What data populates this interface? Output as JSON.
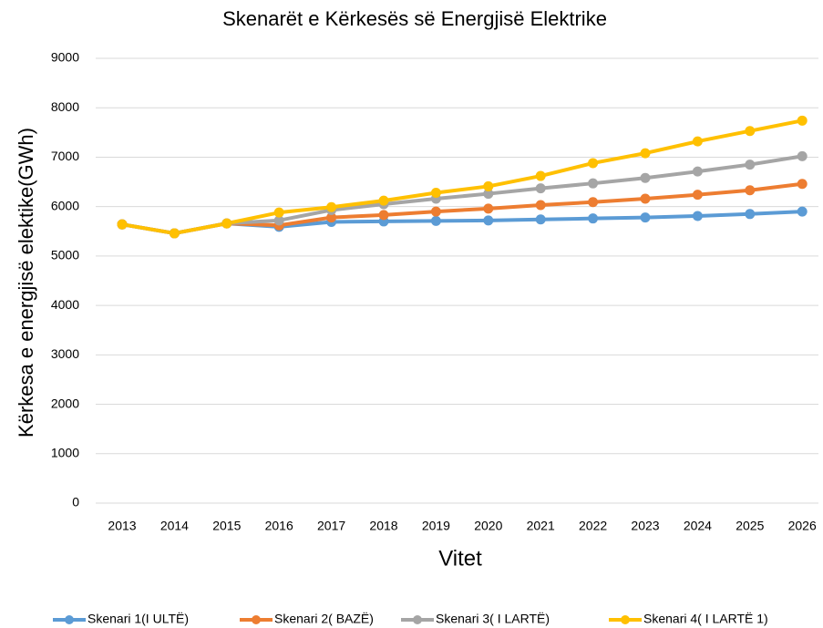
{
  "chart_data": {
    "type": "line",
    "title": "Skenarët e  Kërkesës së Energjisë Elektrike",
    "x_label": "Vitet",
    "y_label": "Kërkesa e energjisë elektike(GWh)",
    "categories": [
      "2013",
      "2014",
      "2015",
      "2016",
      "2017",
      "2018",
      "2019",
      "2020",
      "2021",
      "2022",
      "2023",
      "2024",
      "2025",
      "2026"
    ],
    "series": [
      {
        "name": "Skenari 1(I ULTË)",
        "color": "#5b9bd5",
        "values": [
          5640,
          5460,
          5660,
          5590,
          5690,
          5700,
          5710,
          5720,
          5740,
          5760,
          5780,
          5810,
          5850,
          5900
        ]
      },
      {
        "name": "Skenari 2( BAZË)",
        "color": "#ed7d31",
        "values": [
          5640,
          5460,
          5660,
          5620,
          5780,
          5830,
          5900,
          5960,
          6030,
          6090,
          6160,
          6240,
          6330,
          6460
        ]
      },
      {
        "name": "Skenari 3( I LARTË)",
        "color": "#a5a5a5",
        "values": [
          5640,
          5460,
          5660,
          5720,
          5930,
          6050,
          6160,
          6260,
          6370,
          6470,
          6580,
          6710,
          6850,
          7020
        ]
      },
      {
        "name": "Skenari 4( I LARTË 1)",
        "color": "#ffc000",
        "values": [
          5640,
          5460,
          5660,
          5880,
          5990,
          6120,
          6280,
          6410,
          6620,
          6880,
          7080,
          7320,
          7530,
          7740
        ]
      }
    ],
    "ylim": [
      0,
      9000
    ],
    "yticks": [
      0,
      1000,
      2000,
      3000,
      4000,
      5000,
      6000,
      7000,
      8000,
      9000
    ],
    "grid": true,
    "legend": "bottom"
  }
}
